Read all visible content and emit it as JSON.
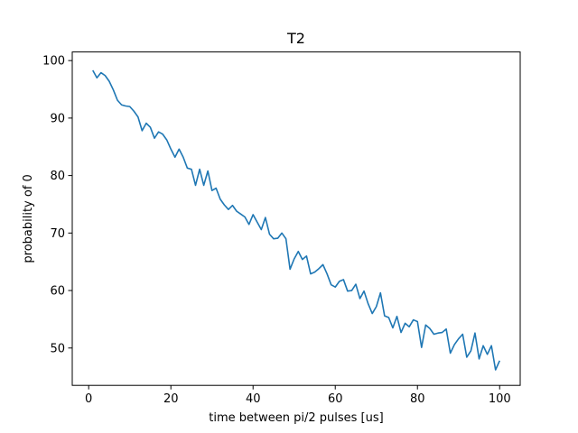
{
  "chart_data": {
    "type": "line",
    "title": "T2",
    "xlabel": "time between pi/2 pulses [us]",
    "ylabel": "probability of 0",
    "xlim": [
      -4,
      105
    ],
    "ylim": [
      43.5,
      101.5
    ],
    "xticks": [
      0,
      20,
      40,
      60,
      80,
      100
    ],
    "yticks": [
      50,
      60,
      70,
      80,
      90,
      100
    ],
    "grid": false,
    "legend": "none",
    "line_color": "#1f77b4",
    "series": [
      {
        "x": [
          1,
          2,
          3,
          4,
          5,
          6,
          7,
          8,
          9,
          10,
          11,
          12,
          13,
          14,
          15,
          16,
          17,
          18,
          19,
          20,
          21,
          22,
          23,
          24,
          25,
          26,
          27,
          28,
          29,
          30,
          31,
          32,
          33,
          34,
          35,
          36,
          37,
          38,
          39,
          40,
          41,
          42,
          43,
          44,
          45,
          46,
          47,
          48,
          49,
          50,
          51,
          52,
          53,
          54,
          55,
          56,
          57,
          58,
          59,
          60,
          61,
          62,
          63,
          64,
          65,
          66,
          67,
          68,
          69,
          70,
          71,
          72,
          73,
          74,
          75,
          76,
          77,
          78,
          79,
          80,
          81,
          82,
          83,
          84,
          85,
          86,
          87,
          88,
          89,
          90,
          91,
          92,
          93,
          94,
          95,
          96,
          97,
          98,
          99,
          100
        ],
        "values": [
          98.3,
          97.0,
          97.9,
          97.4,
          96.4,
          94.9,
          93.1,
          92.3,
          92.1,
          92.0,
          91.2,
          90.2,
          87.8,
          89.1,
          88.4,
          86.5,
          87.6,
          87.2,
          86.2,
          84.6,
          83.2,
          84.6,
          83.2,
          81.3,
          81.1,
          78.3,
          81.1,
          78.3,
          80.8,
          77.4,
          77.8,
          75.9,
          74.9,
          74.1,
          74.8,
          73.8,
          73.3,
          72.8,
          71.5,
          73.2,
          71.9,
          70.6,
          72.7,
          69.8,
          69.0,
          69.1,
          70.0,
          69.0,
          63.7,
          65.5,
          66.8,
          65.4,
          66.0,
          62.9,
          63.2,
          63.8,
          64.5,
          62.9,
          61.0,
          60.6,
          61.6,
          61.9,
          59.9,
          60.0,
          61.1,
          58.6,
          59.9,
          57.7,
          56.0,
          57.2,
          59.6,
          55.6,
          55.3,
          53.5,
          55.5,
          52.7,
          54.3,
          53.7,
          54.9,
          54.6,
          50.1,
          54.0,
          53.4,
          52.4,
          52.6,
          52.7,
          53.3,
          49.1,
          50.6,
          51.6,
          52.4,
          48.4,
          49.5,
          52.6,
          48.1,
          50.4,
          48.9,
          50.4,
          46.2,
          47.8
        ]
      }
    ]
  }
}
